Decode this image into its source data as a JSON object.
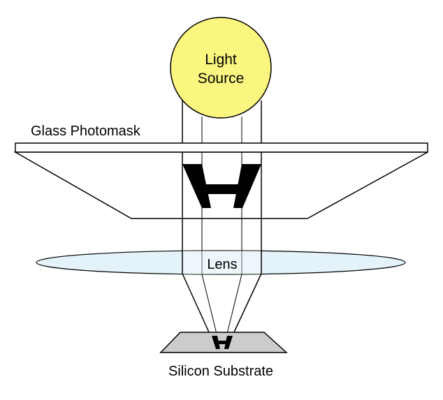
{
  "diagram": {
    "light_source_label_line1": "Light",
    "light_source_label_line2": "Source",
    "photomask_label": "Glass Photomask",
    "lens_label": "Lens",
    "substrate_label": "Silicon Substrate",
    "colors": {
      "light_source_fill": "#fbf680",
      "lens_fill": "#e3f3f9",
      "substrate_fill": "#cccccc",
      "stroke": "#000000"
    }
  }
}
